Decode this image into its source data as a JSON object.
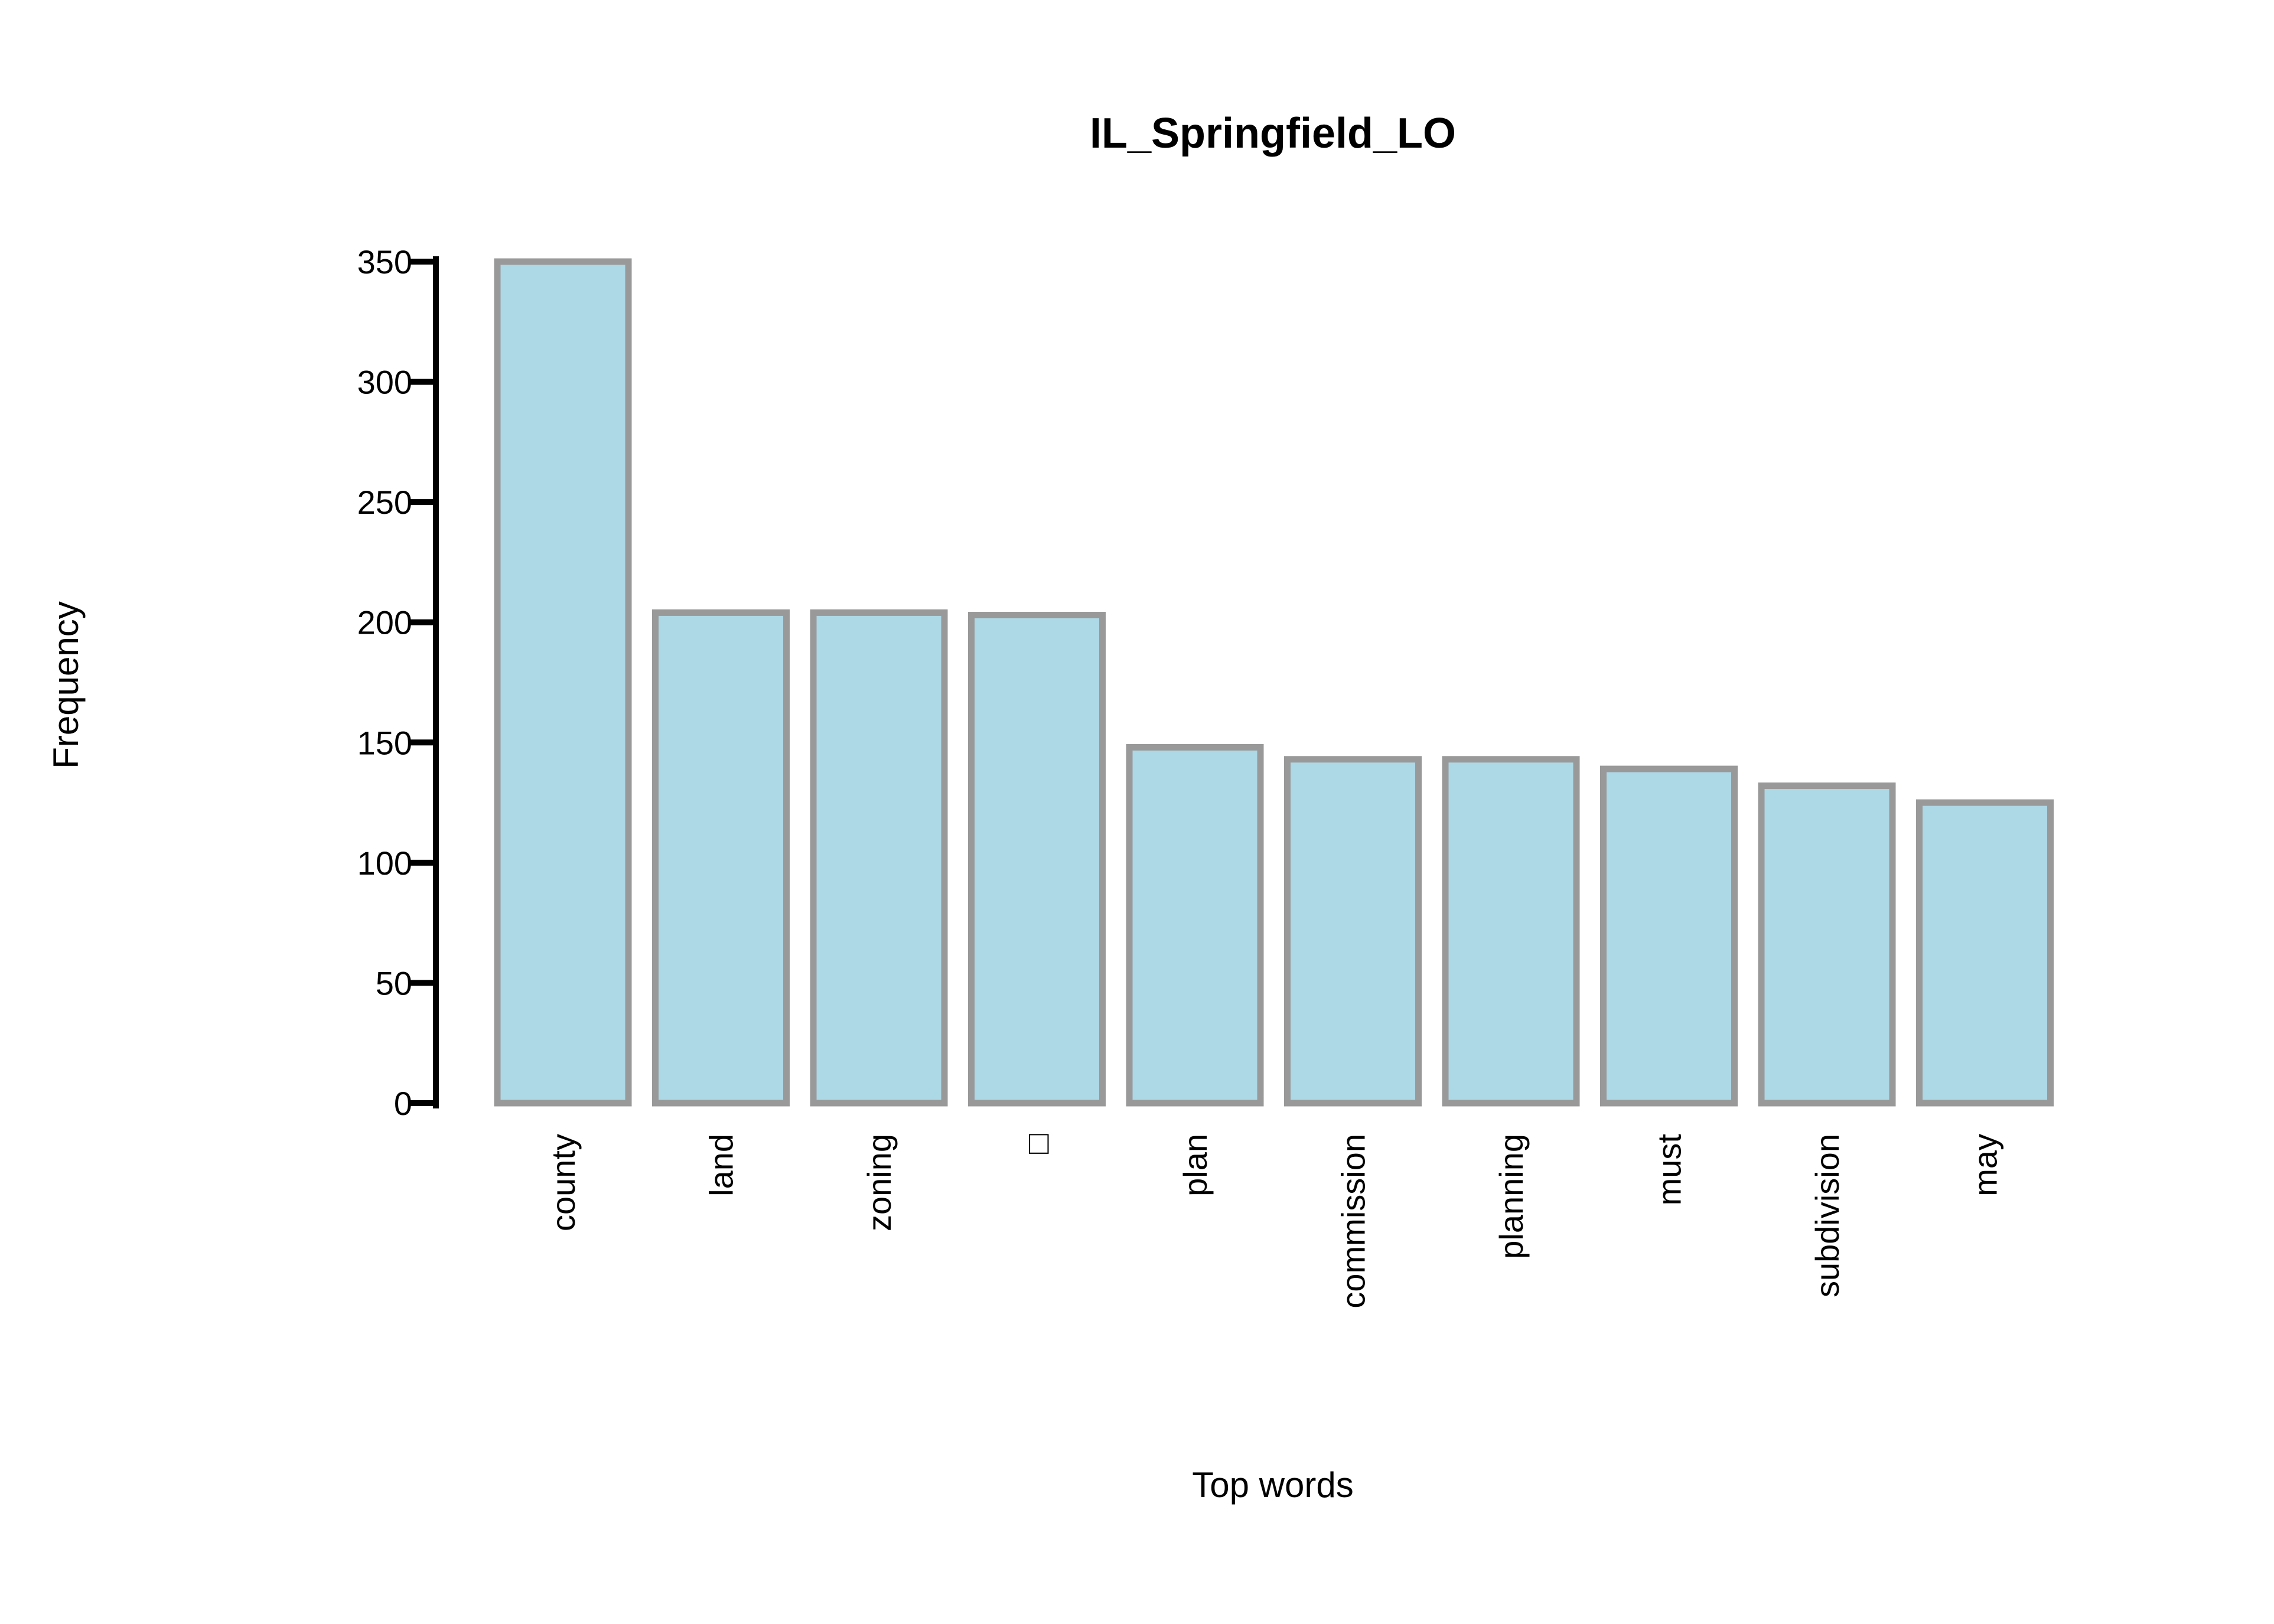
{
  "chart_data": {
    "type": "bar",
    "title": "IL_Springfield_LO",
    "xlabel": "Top words",
    "ylabel": "Frequency",
    "categories": [
      "county",
      "land",
      "zoning",
      "□",
      "plan",
      "commission",
      "planning",
      "must",
      "subdivision",
      "may"
    ],
    "values": [
      350,
      204,
      204,
      203,
      148,
      143,
      143,
      139,
      132,
      125
    ],
    "ylim": [
      0,
      350
    ],
    "yticks": [
      0,
      50,
      100,
      150,
      200,
      250,
      300,
      350
    ],
    "grid": false,
    "legend": "none",
    "colors": {
      "bar_fill": "#add8e6",
      "bar_stroke": "#999999",
      "axis": "#000000"
    }
  }
}
